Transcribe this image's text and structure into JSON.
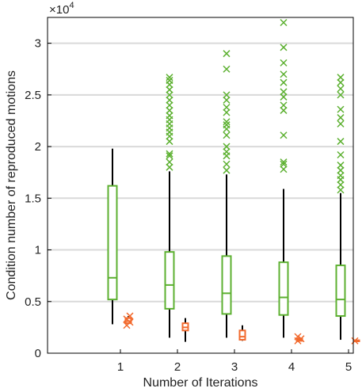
{
  "chart_data": {
    "type": "box",
    "title": "",
    "xlabel": "Number of Iterations",
    "ylabel": "Condition number of reproduced motions",
    "exponent_label": "×10",
    "exponent_power": "4",
    "ylim": [
      0,
      32500
    ],
    "yticks": [
      {
        "value": 0,
        "label": "0"
      },
      {
        "value": 5000,
        "label": "0.5"
      },
      {
        "value": 10000,
        "label": "1"
      },
      {
        "value": 15000,
        "label": "1.5"
      },
      {
        "value": 20000,
        "label": "2"
      },
      {
        "value": 25000,
        "label": "2.5"
      },
      {
        "value": 30000,
        "label": "3"
      }
    ],
    "xticks": [
      "1",
      "2",
      "3",
      "4",
      "5"
    ],
    "grid": "horizontal",
    "colors": {
      "series_a": "#5cb030",
      "series_b": "#f26a2e",
      "whisker": "#000000",
      "grid": "#d9d9d9"
    },
    "series": [
      {
        "color": "#5cb030",
        "boxes": [
          {
            "x": 1,
            "whisker_low": 2800,
            "q1": 5200,
            "median": 7300,
            "q3": 16200,
            "whisker_high": 19800,
            "outliers": []
          },
          {
            "x": 2,
            "whisker_low": 1500,
            "q1": 4300,
            "median": 6600,
            "q3": 9800,
            "whisker_high": 17600,
            "outliers": [
              18000,
              18500,
              19100,
              19300,
              20500,
              21000,
              21400,
              21800,
              22200,
              22600,
              23000,
              23500,
              24000,
              24500,
              25000,
              25500,
              26000,
              26400,
              26700
            ]
          },
          {
            "x": 3,
            "whisker_low": 1500,
            "q1": 3800,
            "median": 5800,
            "q3": 9400,
            "whisker_high": 17300,
            "outliers": [
              17700,
              18300,
              19100,
              19500,
              20000,
              21100,
              21700,
              22100,
              22400,
              23300,
              23800,
              24500,
              25000,
              27500,
              29000
            ]
          },
          {
            "x": 4,
            "whisker_low": 1500,
            "q1": 3700,
            "median": 5400,
            "q3": 8800,
            "whisker_high": 15900,
            "outliers": [
              17800,
              18300,
              18500,
              21100,
              23500,
              24000,
              24800,
              25300,
              26200,
              27000,
              28100,
              29600,
              32000
            ]
          },
          {
            "x": 5,
            "whisker_low": 1300,
            "q1": 3600,
            "median": 5200,
            "q3": 8500,
            "whisker_high": 15500,
            "outliers": [
              15800,
              16300,
              16800,
              17200,
              17700,
              18200,
              19200,
              20500,
              22200,
              22800,
              23600,
              25000,
              25600,
              26200,
              26700
            ]
          }
        ]
      },
      {
        "color": "#f26a2e",
        "boxes": [
          {
            "x": 1,
            "whisker_low": 2800,
            "q1": 2900,
            "median": 3100,
            "q3": 3400,
            "whisker_high": 3600,
            "outliers": [
              2700,
              3000,
              3300,
              3600
            ]
          },
          {
            "x": 2,
            "whisker_low": 1100,
            "q1": 2200,
            "median": 2500,
            "q3": 2900,
            "whisker_high": 3400,
            "outliers": []
          },
          {
            "x": 3,
            "whisker_low": 1200,
            "q1": 1300,
            "median": 1600,
            "q3": 2200,
            "whisker_high": 2700,
            "outliers": []
          },
          {
            "x": 4,
            "whisker_low": 1200,
            "q1": 1200,
            "median": 1300,
            "q3": 1400,
            "whisker_high": 1500,
            "outliers": [
              1200,
              1400,
              1600
            ]
          },
          {
            "x": 5,
            "whisker_low": 1100,
            "q1": 1150,
            "median": 1200,
            "q3": 1250,
            "whisker_high": 1300,
            "outliers": [
              1200
            ]
          }
        ]
      }
    ]
  }
}
